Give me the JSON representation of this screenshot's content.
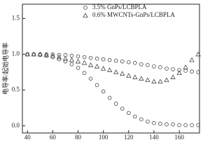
{
  "chart_data": {
    "type": "scatter",
    "y_label": "电导率/起始电导率",
    "x": [
      40,
      45,
      50,
      55,
      60,
      65,
      70,
      75,
      80,
      85,
      90,
      95,
      100,
      105,
      110,
      115,
      120,
      125,
      130,
      135,
      140,
      145,
      150,
      155,
      160,
      165,
      170,
      175
    ],
    "series": [
      {
        "name": "3.5% GnPs/LCBPLA",
        "marker": "circle",
        "color": "#444444",
        "values": [
          1.0,
          1.0,
          0.99,
          0.98,
          0.96,
          0.93,
          0.9,
          0.86,
          0.81,
          0.74,
          0.66,
          0.57,
          0.48,
          0.39,
          0.31,
          0.24,
          0.18,
          0.13,
          0.09,
          0.06,
          0.04,
          0.03,
          0.02,
          0.02,
          0.01,
          0.01,
          0.01,
          0.01
        ]
      },
      {
        "name": "0.6% MWCNTs-GnPs/LCBPLA",
        "marker": "triangle",
        "color": "#444444",
        "values": [
          1.0,
          1.0,
          1.0,
          0.99,
          0.98,
          0.96,
          0.94,
          0.92,
          0.9,
          0.88,
          0.85,
          0.83,
          0.8,
          0.78,
          0.75,
          0.73,
          0.7,
          0.68,
          0.66,
          0.64,
          0.62,
          0.62,
          0.64,
          0.68,
          0.74,
          0.82,
          0.92,
          1.0
        ]
      },
      {
        "marker": "circle",
        "color": "#444444",
        "values": [
          1.0,
          1.0,
          1.0,
          1.0,
          1.0,
          0.99,
          0.99,
          0.98,
          0.97,
          0.96,
          0.95,
          0.94,
          0.93,
          0.92,
          0.91,
          0.9,
          0.89,
          0.88,
          0.86,
          0.85,
          0.83,
          0.82,
          0.8,
          0.79,
          0.78,
          0.77,
          0.76,
          0.75
        ]
      }
    ],
    "xlim": [
      36,
      176
    ],
    "xticks": [
      40,
      60,
      80,
      100,
      120,
      140,
      160
    ],
    "ylim": [
      -0.1,
      1.7
    ],
    "yticks": [
      {
        "value": 0,
        "label": "0.0"
      },
      {
        "value": 0.5,
        "label": "0.5"
      },
      {
        "value": 1,
        "label": "1.0"
      },
      {
        "value": 1.5,
        "label": "1.5"
      }
    ]
  }
}
